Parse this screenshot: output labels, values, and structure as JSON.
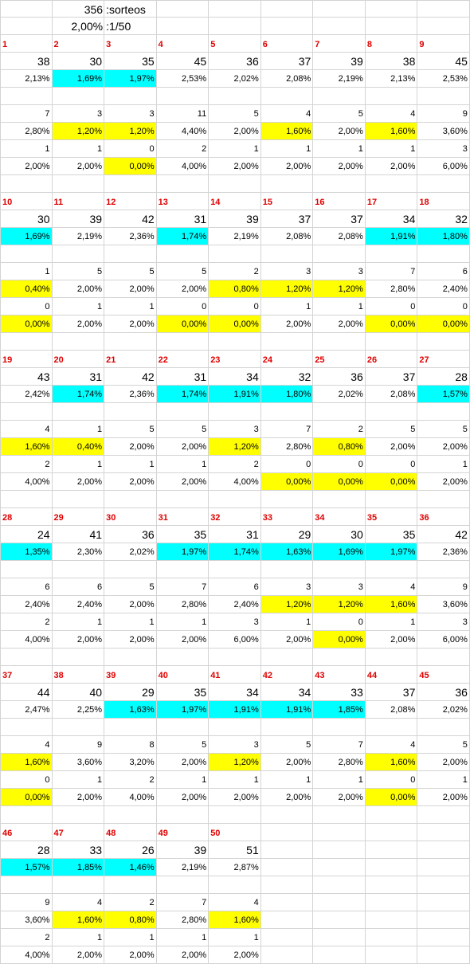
{
  "header": {
    "draws_count": "356",
    "draws_label": ":sorteos",
    "prob_value": "2,00%",
    "prob_label": ":1/50"
  },
  "highlight_colors": {
    "below_expected_freq": "#00ffff",
    "below_expected_recent": "#ffff00"
  },
  "blocks": [
    {
      "numbers": [
        "1",
        "2",
        "3",
        "4",
        "5",
        "6",
        "7",
        "8",
        "9"
      ],
      "counts": [
        "38",
        "30",
        "35",
        "45",
        "36",
        "37",
        "39",
        "38",
        "45"
      ],
      "pct": [
        "2,13%",
        "1,69%",
        "1,97%",
        "2,53%",
        "2,02%",
        "2,08%",
        "2,19%",
        "2,13%",
        "2,53%"
      ],
      "pct_hl": [
        "",
        "cyan",
        "cyan",
        "",
        "",
        "",
        "",
        "",
        ""
      ],
      "recent_a": [
        "7",
        "3",
        "3",
        "11",
        "5",
        "4",
        "5",
        "4",
        "9"
      ],
      "recent_a_pct": [
        "2,80%",
        "1,20%",
        "1,20%",
        "4,40%",
        "2,00%",
        "1,60%",
        "2,00%",
        "1,60%",
        "3,60%"
      ],
      "recent_a_hl": [
        "",
        "yellow",
        "yellow",
        "",
        "",
        "yellow",
        "",
        "yellow",
        ""
      ],
      "recent_b": [
        "1",
        "1",
        "0",
        "2",
        "1",
        "1",
        "1",
        "1",
        "3"
      ],
      "recent_b_pct": [
        "2,00%",
        "2,00%",
        "0,00%",
        "4,00%",
        "2,00%",
        "2,00%",
        "2,00%",
        "2,00%",
        "6,00%"
      ],
      "recent_b_hl": [
        "",
        "",
        "yellow",
        "",
        "",
        "",
        "",
        "",
        ""
      ]
    },
    {
      "numbers": [
        "10",
        "11",
        "12",
        "13",
        "14",
        "15",
        "16",
        "17",
        "18"
      ],
      "counts": [
        "30",
        "39",
        "42",
        "31",
        "39",
        "37",
        "37",
        "34",
        "32"
      ],
      "pct": [
        "1,69%",
        "2,19%",
        "2,36%",
        "1,74%",
        "2,19%",
        "2,08%",
        "2,08%",
        "1,91%",
        "1,80%"
      ],
      "pct_hl": [
        "cyan",
        "",
        "",
        "cyan",
        "",
        "",
        "",
        "cyan",
        "cyan"
      ],
      "recent_a": [
        "1",
        "5",
        "5",
        "5",
        "2",
        "3",
        "3",
        "7",
        "6"
      ],
      "recent_a_pct": [
        "0,40%",
        "2,00%",
        "2,00%",
        "2,00%",
        "0,80%",
        "1,20%",
        "1,20%",
        "2,80%",
        "2,40%"
      ],
      "recent_a_hl": [
        "yellow",
        "",
        "",
        "",
        "yellow",
        "yellow",
        "yellow",
        "",
        ""
      ],
      "recent_b": [
        "0",
        "1",
        "1",
        "0",
        "0",
        "1",
        "1",
        "0",
        "0"
      ],
      "recent_b_pct": [
        "0,00%",
        "2,00%",
        "2,00%",
        "0,00%",
        "0,00%",
        "2,00%",
        "2,00%",
        "0,00%",
        "0,00%"
      ],
      "recent_b_hl": [
        "yellow",
        "",
        "",
        "yellow",
        "yellow",
        "",
        "",
        "yellow",
        "yellow"
      ]
    },
    {
      "numbers": [
        "19",
        "20",
        "21",
        "22",
        "23",
        "24",
        "25",
        "26",
        "27"
      ],
      "counts": [
        "43",
        "31",
        "42",
        "31",
        "34",
        "32",
        "36",
        "37",
        "28"
      ],
      "pct": [
        "2,42%",
        "1,74%",
        "2,36%",
        "1,74%",
        "1,91%",
        "1,80%",
        "2,02%",
        "2,08%",
        "1,57%"
      ],
      "pct_hl": [
        "",
        "cyan",
        "",
        "cyan",
        "cyan",
        "cyan",
        "",
        "",
        "cyan"
      ],
      "recent_a": [
        "4",
        "1",
        "5",
        "5",
        "3",
        "7",
        "2",
        "5",
        "5"
      ],
      "recent_a_pct": [
        "1,60%",
        "0,40%",
        "2,00%",
        "2,00%",
        "1,20%",
        "2,80%",
        "0,80%",
        "2,00%",
        "2,00%"
      ],
      "recent_a_hl": [
        "yellow",
        "yellow",
        "",
        "",
        "yellow",
        "",
        "yellow",
        "",
        ""
      ],
      "recent_b": [
        "2",
        "1",
        "1",
        "1",
        "2",
        "0",
        "0",
        "0",
        "1"
      ],
      "recent_b_pct": [
        "4,00%",
        "2,00%",
        "2,00%",
        "2,00%",
        "4,00%",
        "0,00%",
        "0,00%",
        "0,00%",
        "2,00%"
      ],
      "recent_b_hl": [
        "",
        "",
        "",
        "",
        "",
        "yellow",
        "yellow",
        "yellow",
        ""
      ]
    },
    {
      "numbers": [
        "28",
        "29",
        "30",
        "31",
        "32",
        "33",
        "34",
        "35",
        "36"
      ],
      "counts": [
        "24",
        "41",
        "36",
        "35",
        "31",
        "29",
        "30",
        "35",
        "42"
      ],
      "pct": [
        "1,35%",
        "2,30%",
        "2,02%",
        "1,97%",
        "1,74%",
        "1,63%",
        "1,69%",
        "1,97%",
        "2,36%"
      ],
      "pct_hl": [
        "cyan",
        "",
        "",
        "cyan",
        "cyan",
        "cyan",
        "cyan",
        "cyan",
        ""
      ],
      "recent_a": [
        "6",
        "6",
        "5",
        "7",
        "6",
        "3",
        "3",
        "4",
        "9"
      ],
      "recent_a_pct": [
        "2,40%",
        "2,40%",
        "2,00%",
        "2,80%",
        "2,40%",
        "1,20%",
        "1,20%",
        "1,60%",
        "3,60%"
      ],
      "recent_a_hl": [
        "",
        "",
        "",
        "",
        "",
        "yellow",
        "yellow",
        "yellow",
        ""
      ],
      "recent_b": [
        "2",
        "1",
        "1",
        "1",
        "3",
        "1",
        "0",
        "1",
        "3"
      ],
      "recent_b_pct": [
        "4,00%",
        "2,00%",
        "2,00%",
        "2,00%",
        "6,00%",
        "2,00%",
        "0,00%",
        "2,00%",
        "6,00%"
      ],
      "recent_b_hl": [
        "",
        "",
        "",
        "",
        "",
        "",
        "yellow",
        "",
        ""
      ]
    },
    {
      "numbers": [
        "37",
        "38",
        "39",
        "40",
        "41",
        "42",
        "43",
        "44",
        "45"
      ],
      "counts": [
        "44",
        "40",
        "29",
        "35",
        "34",
        "34",
        "33",
        "37",
        "36"
      ],
      "pct": [
        "2,47%",
        "2,25%",
        "1,63%",
        "1,97%",
        "1,91%",
        "1,91%",
        "1,85%",
        "2,08%",
        "2,02%"
      ],
      "pct_hl": [
        "",
        "",
        "cyan",
        "cyan",
        "cyan",
        "cyan",
        "cyan",
        "",
        ""
      ],
      "recent_a": [
        "4",
        "9",
        "8",
        "5",
        "3",
        "5",
        "7",
        "4",
        "5"
      ],
      "recent_a_pct": [
        "1,60%",
        "3,60%",
        "3,20%",
        "2,00%",
        "1,20%",
        "2,00%",
        "2,80%",
        "1,60%",
        "2,00%"
      ],
      "recent_a_hl": [
        "yellow",
        "",
        "",
        "",
        "yellow",
        "",
        "",
        "yellow",
        ""
      ],
      "recent_b": [
        "0",
        "1",
        "2",
        "1",
        "1",
        "1",
        "1",
        "0",
        "1"
      ],
      "recent_b_pct": [
        "0,00%",
        "2,00%",
        "4,00%",
        "2,00%",
        "2,00%",
        "2,00%",
        "2,00%",
        "0,00%",
        "2,00%"
      ],
      "recent_b_hl": [
        "yellow",
        "",
        "",
        "",
        "",
        "",
        "",
        "yellow",
        ""
      ]
    },
    {
      "numbers": [
        "46",
        "47",
        "48",
        "49",
        "50",
        "",
        "",
        "",
        ""
      ],
      "counts": [
        "28",
        "33",
        "26",
        "39",
        "51",
        "",
        "",
        "",
        ""
      ],
      "pct": [
        "1,57%",
        "1,85%",
        "1,46%",
        "2,19%",
        "2,87%",
        "",
        "",
        "",
        ""
      ],
      "pct_hl": [
        "cyan",
        "cyan",
        "cyan",
        "",
        "",
        "",
        "",
        "",
        ""
      ],
      "recent_a": [
        "9",
        "4",
        "2",
        "7",
        "4",
        "",
        "",
        "",
        ""
      ],
      "recent_a_pct": [
        "3,60%",
        "1,60%",
        "0,80%",
        "2,80%",
        "1,60%",
        "",
        "",
        "",
        ""
      ],
      "recent_a_hl": [
        "",
        "yellow",
        "yellow",
        "",
        "yellow",
        "",
        "",
        "",
        ""
      ],
      "recent_b": [
        "2",
        "1",
        "1",
        "1",
        "1",
        "",
        "",
        "",
        ""
      ],
      "recent_b_pct": [
        "4,00%",
        "2,00%",
        "2,00%",
        "2,00%",
        "2,00%",
        "",
        "",
        "",
        ""
      ],
      "recent_b_hl": [
        "",
        "",
        "",
        "",
        "",
        "",
        "",
        "",
        ""
      ]
    }
  ]
}
